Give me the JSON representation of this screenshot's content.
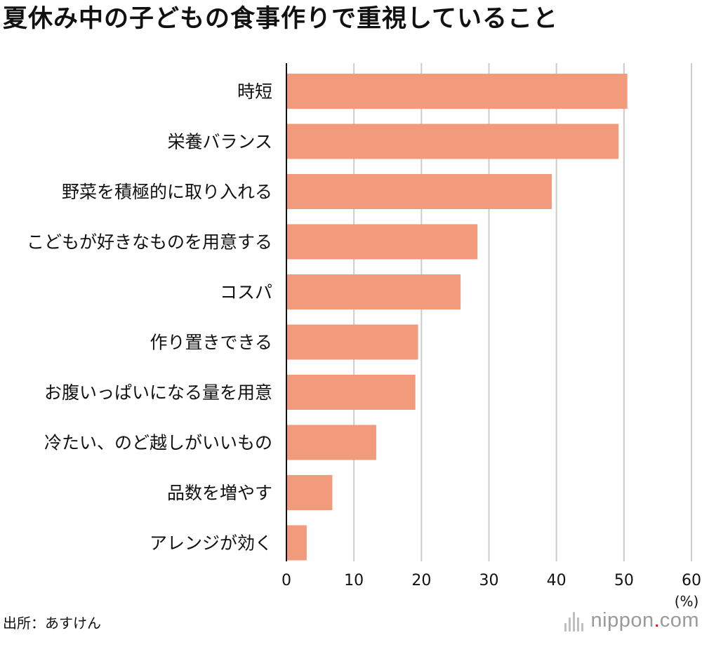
{
  "chart_data": {
    "type": "bar",
    "orientation": "horizontal",
    "title": "夏休み中の子どもの食事作りで重視していること",
    "categories": [
      "時短",
      "栄養バランス",
      "野菜を積極的に取り入れる",
      "こどもが好きなものを用意する",
      "コスパ",
      "作り置きできる",
      "お腹いっぱいになる量を用意",
      "冷たい、のど越しがいいもの",
      "品数を増やす",
      "アレンジが効く"
    ],
    "values": [
      50.5,
      49.2,
      39.3,
      28.3,
      25.8,
      19.5,
      19.1,
      13.3,
      6.8,
      3.0
    ],
    "xlim": [
      0,
      60
    ],
    "xticks": [
      "0",
      "10",
      "20",
      "30",
      "40",
      "50",
      "60"
    ],
    "unit": "(%)",
    "grid": true,
    "bar_color": "#f29b7c",
    "grid_color": "#cccccc"
  },
  "source": "出所：あすけん",
  "logo": {
    "name": "nippon",
    "dot": ".",
    "tld": "com",
    "dot_color": "#e60012"
  }
}
